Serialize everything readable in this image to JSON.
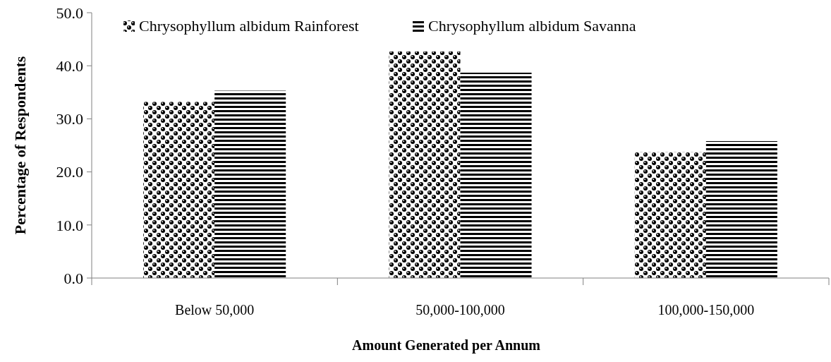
{
  "chart_data": {
    "type": "bar",
    "xlabel": "Amount Generated per Annum",
    "ylabel": "Percentage of Respondents",
    "categories": [
      "Below 50,000",
      "50,000-100,000",
      "100,000-150,000"
    ],
    "series": [
      {
        "name": "Chrysophyllum albidum Rainforest",
        "color": "#000000",
        "values": [
          33.2,
          42.7,
          23.7
        ]
      },
      {
        "name": "Chrysophyllum albidum Savanna",
        "color": "#000000",
        "values": [
          35.3,
          38.7,
          25.8
        ]
      }
    ],
    "ylim": [
      0,
      50
    ],
    "yticks": [
      {
        "value": 0,
        "label": "0.0"
      },
      {
        "value": 10,
        "label": "10.0"
      },
      {
        "value": 20,
        "label": "20.0"
      },
      {
        "value": 30,
        "label": "30.0"
      },
      {
        "value": 40,
        "label": "40.0"
      },
      {
        "value": 50,
        "label": "50.0"
      }
    ],
    "legend": "top",
    "grid": false
  }
}
